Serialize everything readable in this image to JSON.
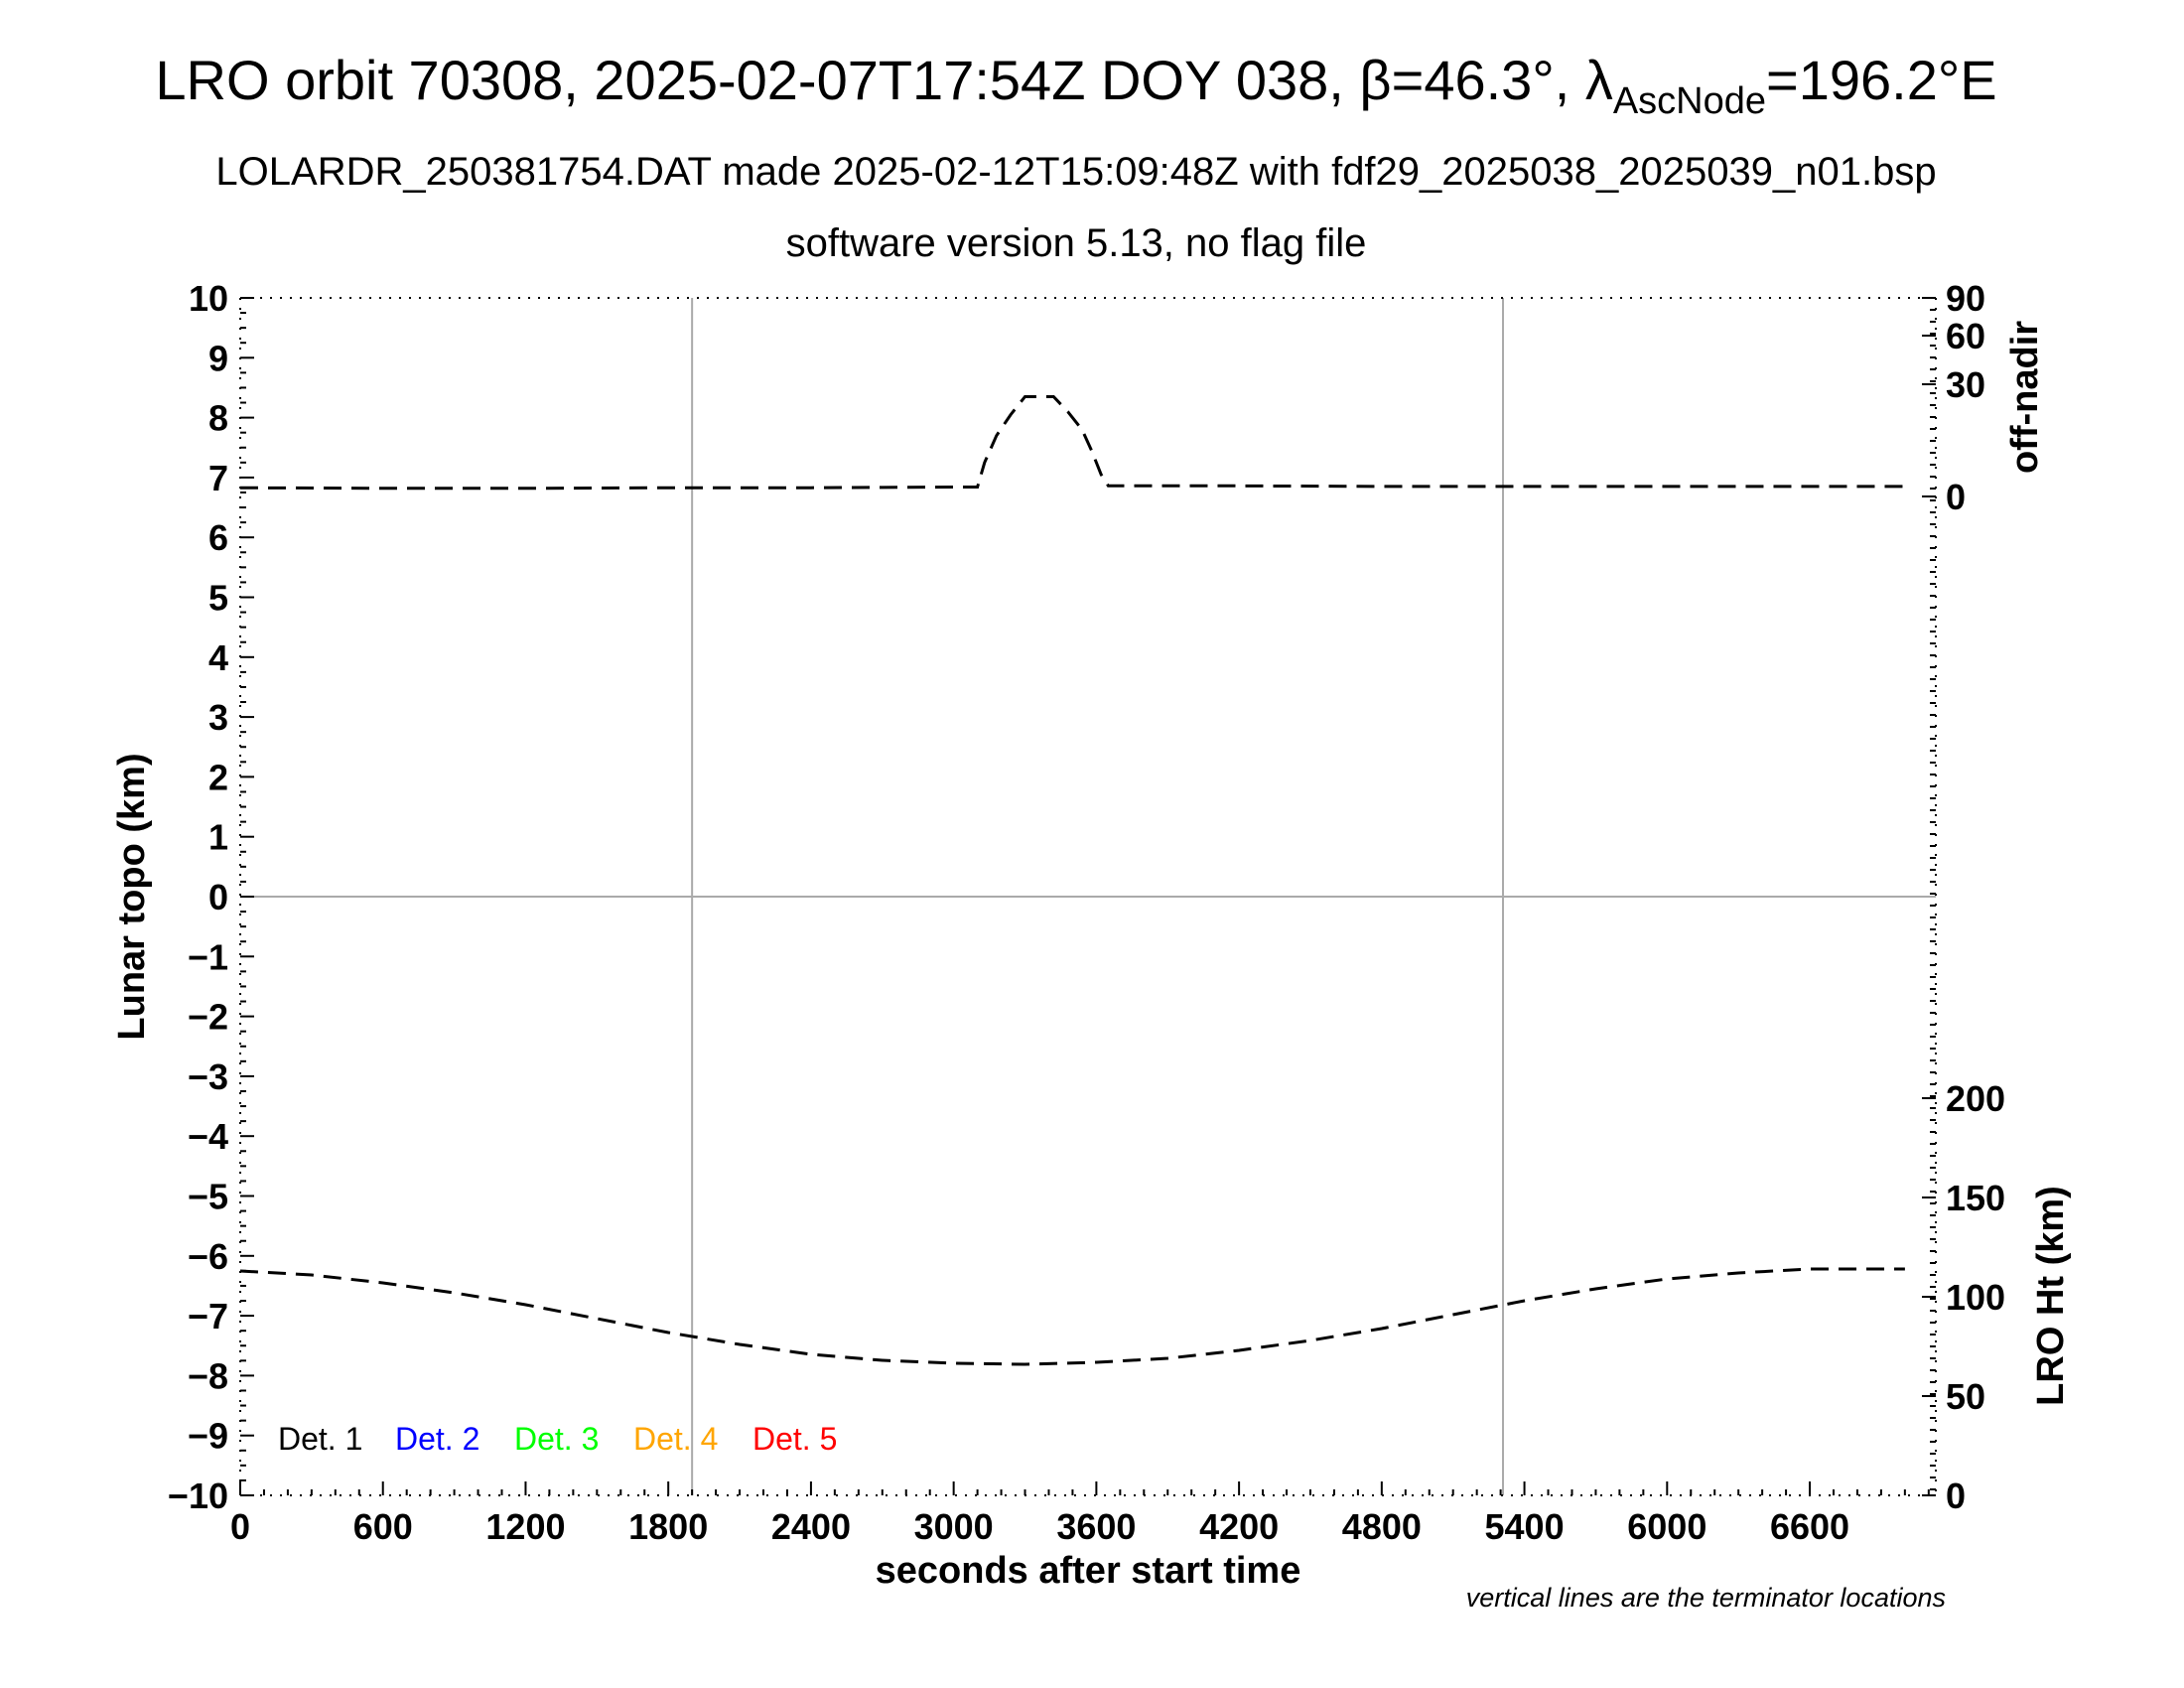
{
  "title": {
    "main_prefix": "LRO orbit 70308, 2025-02-07T17:54Z DOY 038, β=46.3°, λ",
    "main_sub": "AscNode",
    "main_suffix": "=196.2°E",
    "line2": "LOLARDR_250381754.DAT made 2025-02-12T15:09:48Z with fdf29_2025038_2025039_n01.bsp",
    "line3": "software version 5.13, no flag file"
  },
  "footnote": "vertical lines are the terminator locations",
  "colors": {
    "grid": "#aaaaaa",
    "trace": "#000000",
    "det1": "#000000",
    "det2": "#0000ff",
    "det3": "#00ff00",
    "det4": "#ffa500",
    "det5": "#ff0000"
  },
  "chart_data": {
    "type": "line",
    "xlabel": "seconds after start time",
    "ylabel_left": "Lunar topo (km)",
    "ylabel_right_top": "off-nadir",
    "ylabel_right_bottom": "LRO Ht (km)",
    "xlim": [
      0,
      7130
    ],
    "ylim_left": [
      -10,
      10
    ],
    "x_ticks": [
      0,
      600,
      1200,
      1800,
      2400,
      3000,
      3600,
      4200,
      4800,
      5400,
      6000,
      6600
    ],
    "y_ticks_left": [
      10,
      9,
      8,
      7,
      6,
      5,
      4,
      3,
      2,
      1,
      0,
      -1,
      -2,
      -3,
      -4,
      -5,
      -6,
      -7,
      -8,
      -9,
      -10
    ],
    "y_tick_labels_left": [
      "10",
      "9",
      "8",
      "7",
      "6",
      "5",
      "4",
      "3",
      "2",
      "1",
      "0",
      "−1",
      "−2",
      "−3",
      "−4",
      "−5",
      "−6",
      "−7",
      "−8",
      "−9",
      "−10"
    ],
    "off_nadir_ticks": [
      "90",
      "60",
      "30",
      "0"
    ],
    "lro_ht_ticks": [
      200,
      150,
      100,
      50,
      0
    ],
    "terminator_x": [
      1900,
      5310
    ],
    "zero_line_y": 0,
    "legend": [
      "Det. 1",
      "Det. 2",
      "Det. 3",
      "Det. 4",
      "Det. 5"
    ],
    "legend_placement": "lower-left",
    "grid": false,
    "series": [
      {
        "label_axis": "off-nadir",
        "x": [
          0,
          600,
          1200,
          1800,
          2400,
          3000,
          3100,
          3130,
          3180,
          3240,
          3300,
          3360,
          3420,
          3480,
          3540,
          3580,
          3620,
          3650,
          3700,
          4200,
          4800,
          5400,
          6000,
          6600,
          7000
        ],
        "values": [
          6.83,
          6.82,
          6.82,
          6.83,
          6.83,
          6.84,
          6.84,
          7.25,
          7.7,
          8.05,
          8.35,
          8.35,
          8.35,
          8.1,
          7.8,
          7.45,
          7.05,
          6.86,
          6.86,
          6.86,
          6.85,
          6.85,
          6.85,
          6.85,
          6.85
        ]
      },
      {
        "label_axis": "LRO Ht (km)",
        "x": [
          0,
          300,
          600,
          900,
          1200,
          1500,
          1800,
          2100,
          2400,
          2700,
          3000,
          3300,
          3600,
          3900,
          4200,
          4500,
          4800,
          5100,
          5400,
          5700,
          6000,
          6300,
          6600,
          6900,
          7000
        ],
        "values": [
          113,
          111,
          107,
          102,
          96,
          89,
          82,
          76,
          71,
          68,
          66.5,
          66,
          67,
          69,
          73,
          78,
          84,
          91,
          98,
          104,
          109,
          112,
          114,
          114,
          114
        ]
      }
    ]
  }
}
